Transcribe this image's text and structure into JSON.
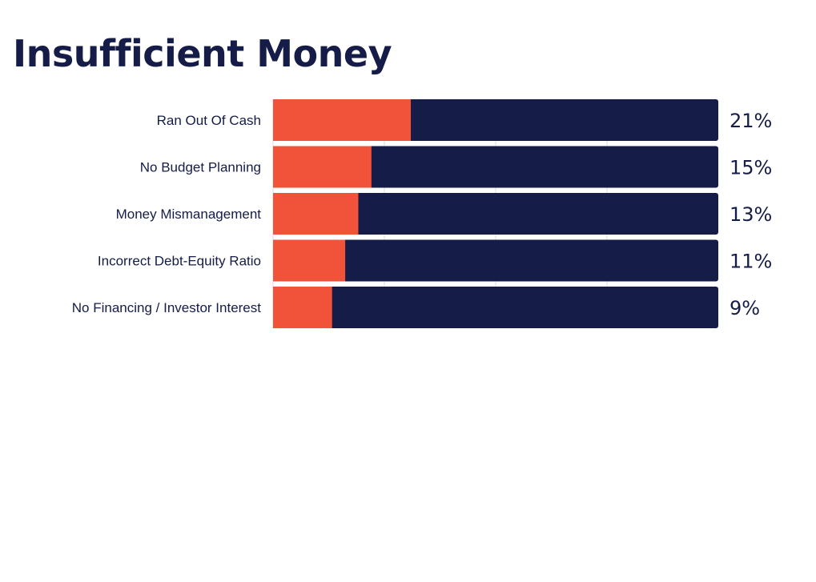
{
  "page": {
    "title": "Insufficient Money"
  },
  "colors": {
    "highlight": "#f0533a",
    "remainder": "#141c47",
    "text": "#141c47",
    "gridline": "#dcdcdc"
  },
  "chart_data": {
    "type": "bar",
    "orientation": "horizontal",
    "stacked": true,
    "title": "Insufficient Money",
    "xlabel": "",
    "ylabel": "",
    "xlim": [
      0,
      100
    ],
    "grid": true,
    "legend": "none",
    "categories": [
      "Ran Out Of Cash",
      "No Budget Planning",
      "Money Mismanagement",
      "Incorrect Debt-Equity Ratio",
      "No Financing / Investor Interest"
    ],
    "values": [
      21,
      15,
      13,
      11,
      9
    ],
    "value_labels": [
      "21%",
      "15%",
      "13%",
      "11%",
      "9%"
    ]
  }
}
